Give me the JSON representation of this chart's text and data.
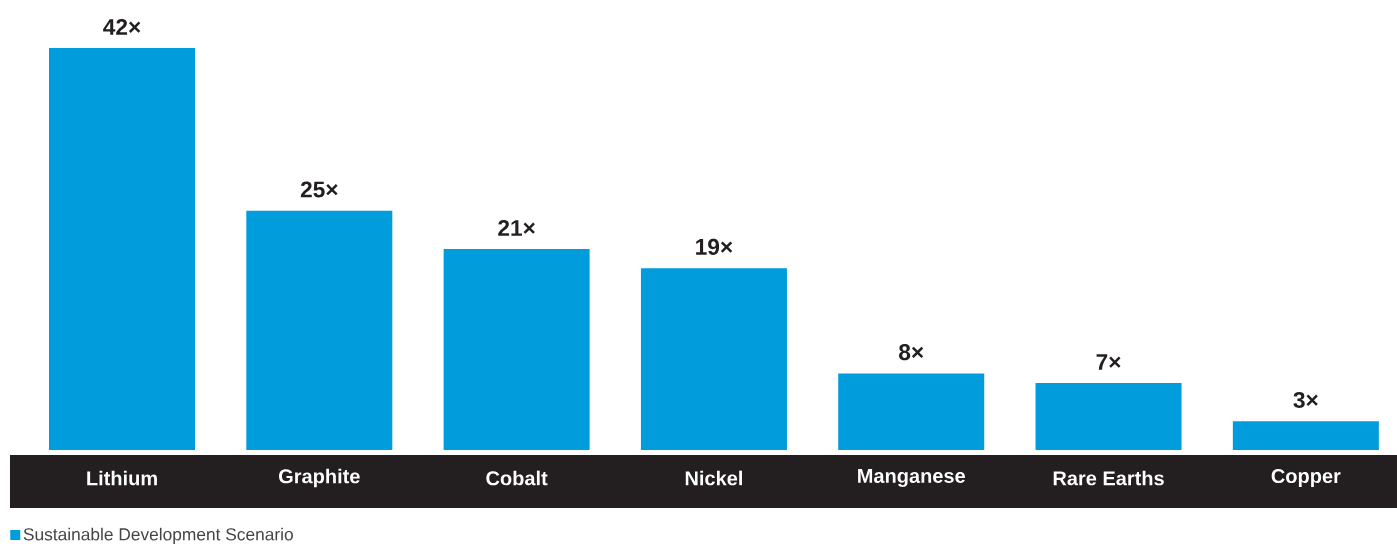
{
  "chart_data": {
    "type": "bar",
    "categories": [
      "Lithium",
      "Graphite",
      "Cobalt",
      "Nickel",
      "Manganese",
      "Rare Earths",
      "Copper"
    ],
    "series": [
      {
        "name": "Sustainable Development Scenario",
        "color": "#009cdc",
        "values": [
          42,
          25,
          21,
          19,
          8,
          7,
          3
        ],
        "value_labels": [
          "42×",
          "25×",
          "21×",
          "19×",
          "8×",
          "7×",
          "3×"
        ]
      }
    ],
    "legend": "bottom left"
  }
}
